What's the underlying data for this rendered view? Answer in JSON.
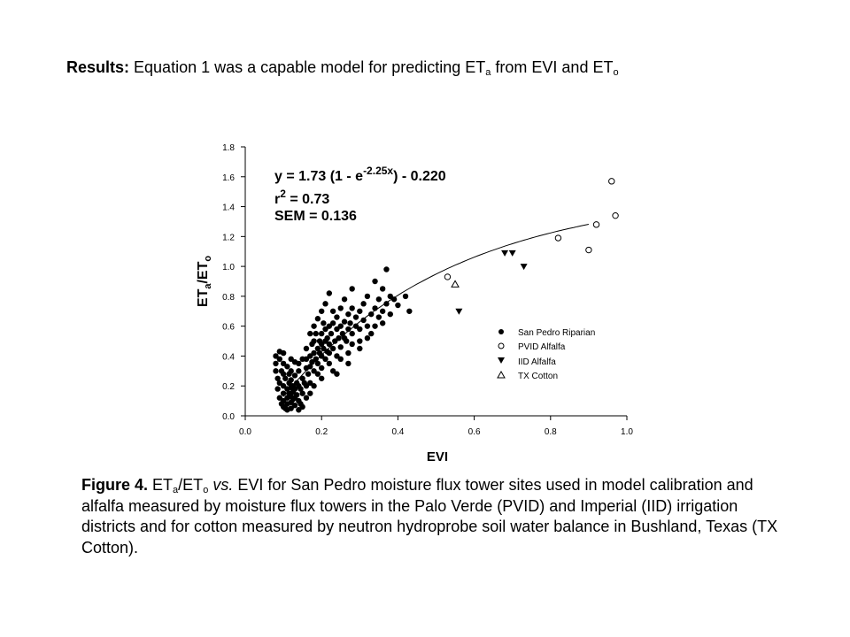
{
  "slide": {
    "title_lead": "Results:",
    "title_text": "Equation 1 was a capable model for predicting ET",
    "title_sub_a": "a",
    "title_mid": "from EVI and ET",
    "title_sub_o": "o"
  },
  "caption": {
    "lead": "Figure 4.",
    "et": "ET",
    "sub_a": "a",
    "slash": "/ET",
    "sub_o": "o",
    "vs": "vs.",
    "rest": "EVI for San Pedro moisture flux tower sites used in model calibration and alfalfa measured by moisture flux towers in the Palo Verde (PVID) and Imperial (IID) irrigation districts and for cotton measured by neutron hydroprobe soil water balance in Bushland, Texas (TX Cotton)."
  },
  "chart_data": {
    "type": "scatter",
    "xlabel": "EVI",
    "ylabel": "ETa/ETo",
    "ylabel_parts": {
      "base": "ET",
      "sub1": "a",
      "mid": "/ET",
      "sub2": "o"
    },
    "xlim": [
      0.0,
      1.0
    ],
    "ylim": [
      0.0,
      1.8
    ],
    "xticks": [
      "0.0",
      "0.2",
      "0.4",
      "0.6",
      "0.8",
      "1.0"
    ],
    "yticks": [
      "0.0",
      "0.2",
      "0.4",
      "0.6",
      "0.8",
      "1.0",
      "1.2",
      "1.4",
      "1.6",
      "1.8"
    ],
    "grid": false,
    "legend_position": "bottom-right",
    "equation": {
      "line1_pre": "y = 1.73 (1 - e",
      "line1_sup": "-2.25x",
      "line1_post": ") - 0.220",
      "line2_pre": "r",
      "line2_sup": "2",
      "line2_post": " = 0.73",
      "line3": "SEM = 0.136"
    },
    "fit": {
      "a": 1.73,
      "b": 2.25,
      "c": 0.22,
      "x_range": [
        0.1,
        0.9
      ]
    },
    "series": [
      {
        "name": "San Pedro Riparian",
        "marker": "filled-circle",
        "points": [
          [
            0.08,
            0.4
          ],
          [
            0.08,
            0.35
          ],
          [
            0.08,
            0.3
          ],
          [
            0.085,
            0.25
          ],
          [
            0.085,
            0.18
          ],
          [
            0.09,
            0.43
          ],
          [
            0.09,
            0.38
          ],
          [
            0.09,
            0.22
          ],
          [
            0.09,
            0.12
          ],
          [
            0.095,
            0.3
          ],
          [
            0.095,
            0.08
          ],
          [
            0.1,
            0.42
          ],
          [
            0.1,
            0.35
          ],
          [
            0.1,
            0.28
          ],
          [
            0.1,
            0.2
          ],
          [
            0.1,
            0.15
          ],
          [
            0.1,
            0.1
          ],
          [
            0.1,
            0.06
          ],
          [
            0.105,
            0.25
          ],
          [
            0.105,
            0.05
          ],
          [
            0.11,
            0.33
          ],
          [
            0.11,
            0.18
          ],
          [
            0.11,
            0.12
          ],
          [
            0.11,
            0.08
          ],
          [
            0.11,
            0.04
          ],
          [
            0.115,
            0.28
          ],
          [
            0.115,
            0.22
          ],
          [
            0.115,
            0.15
          ],
          [
            0.12,
            0.3
          ],
          [
            0.12,
            0.24
          ],
          [
            0.12,
            0.19
          ],
          [
            0.12,
            0.13
          ],
          [
            0.12,
            0.09
          ],
          [
            0.12,
            0.05
          ],
          [
            0.125,
            0.2
          ],
          [
            0.125,
            0.16
          ],
          [
            0.125,
            0.11
          ],
          [
            0.13,
            0.36
          ],
          [
            0.13,
            0.27
          ],
          [
            0.13,
            0.18
          ],
          [
            0.13,
            0.12
          ],
          [
            0.13,
            0.07
          ],
          [
            0.135,
            0.22
          ],
          [
            0.135,
            0.14
          ],
          [
            0.14,
            0.3
          ],
          [
            0.14,
            0.2
          ],
          [
            0.14,
            0.1
          ],
          [
            0.14,
            0.04
          ],
          [
            0.145,
            0.18
          ],
          [
            0.145,
            0.08
          ],
          [
            0.15,
            0.38
          ],
          [
            0.15,
            0.25
          ],
          [
            0.15,
            0.15
          ],
          [
            0.15,
            0.06
          ],
          [
            0.155,
            0.22
          ],
          [
            0.16,
            0.32
          ],
          [
            0.16,
            0.45
          ],
          [
            0.16,
            0.2
          ],
          [
            0.16,
            0.12
          ],
          [
            0.165,
            0.28
          ],
          [
            0.17,
            0.4
          ],
          [
            0.17,
            0.55
          ],
          [
            0.17,
            0.33
          ],
          [
            0.17,
            0.22
          ],
          [
            0.17,
            0.15
          ],
          [
            0.175,
            0.48
          ],
          [
            0.175,
            0.36
          ],
          [
            0.18,
            0.5
          ],
          [
            0.18,
            0.42
          ],
          [
            0.18,
            0.3
          ],
          [
            0.18,
            0.6
          ],
          [
            0.185,
            0.38
          ],
          [
            0.185,
            0.55
          ],
          [
            0.19,
            0.45
          ],
          [
            0.19,
            0.35
          ],
          [
            0.19,
            0.28
          ],
          [
            0.19,
            0.65
          ],
          [
            0.195,
            0.5
          ],
          [
            0.195,
            0.42
          ],
          [
            0.2,
            0.48
          ],
          [
            0.2,
            0.4
          ],
          [
            0.2,
            0.55
          ],
          [
            0.2,
            0.32
          ],
          [
            0.2,
            0.7
          ],
          [
            0.205,
            0.45
          ],
          [
            0.205,
            0.62
          ],
          [
            0.21,
            0.5
          ],
          [
            0.21,
            0.38
          ],
          [
            0.21,
            0.58
          ],
          [
            0.21,
            0.75
          ],
          [
            0.215,
            0.43
          ],
          [
            0.215,
            0.52
          ],
          [
            0.22,
            0.48
          ],
          [
            0.22,
            0.35
          ],
          [
            0.22,
            0.6
          ],
          [
            0.22,
            0.82
          ],
          [
            0.225,
            0.55
          ],
          [
            0.23,
            0.45
          ],
          [
            0.23,
            0.62
          ],
          [
            0.23,
            0.7
          ],
          [
            0.235,
            0.5
          ],
          [
            0.24,
            0.58
          ],
          [
            0.24,
            0.4
          ],
          [
            0.24,
            0.66
          ],
          [
            0.245,
            0.52
          ],
          [
            0.25,
            0.6
          ],
          [
            0.25,
            0.72
          ],
          [
            0.25,
            0.46
          ],
          [
            0.255,
            0.55
          ],
          [
            0.26,
            0.63
          ],
          [
            0.26,
            0.78
          ],
          [
            0.265,
            0.5
          ],
          [
            0.27,
            0.58
          ],
          [
            0.27,
            0.68
          ],
          [
            0.27,
            0.42
          ],
          [
            0.275,
            0.62
          ],
          [
            0.28,
            0.55
          ],
          [
            0.28,
            0.72
          ],
          [
            0.28,
            0.85
          ],
          [
            0.29,
            0.6
          ],
          [
            0.29,
            0.66
          ],
          [
            0.3,
            0.58
          ],
          [
            0.3,
            0.7
          ],
          [
            0.3,
            0.5
          ],
          [
            0.31,
            0.64
          ],
          [
            0.31,
            0.75
          ],
          [
            0.32,
            0.6
          ],
          [
            0.32,
            0.8
          ],
          [
            0.33,
            0.68
          ],
          [
            0.33,
            0.55
          ],
          [
            0.34,
            0.72
          ],
          [
            0.34,
            0.9
          ],
          [
            0.35,
            0.66
          ],
          [
            0.35,
            0.78
          ],
          [
            0.36,
            0.7
          ],
          [
            0.36,
            0.85
          ],
          [
            0.37,
            0.75
          ],
          [
            0.37,
            0.98
          ],
          [
            0.38,
            0.8
          ],
          [
            0.38,
            0.68
          ],
          [
            0.39,
            0.78
          ],
          [
            0.4,
            0.74
          ],
          [
            0.42,
            0.8
          ],
          [
            0.43,
            0.7
          ],
          [
            0.36,
            0.62
          ],
          [
            0.34,
            0.6
          ],
          [
            0.3,
            0.45
          ],
          [
            0.27,
            0.35
          ],
          [
            0.25,
            0.38
          ],
          [
            0.23,
            0.3
          ],
          [
            0.26,
            0.52
          ],
          [
            0.28,
            0.48
          ],
          [
            0.32,
            0.52
          ],
          [
            0.24,
            0.28
          ],
          [
            0.22,
            0.42
          ],
          [
            0.2,
            0.25
          ],
          [
            0.18,
            0.2
          ],
          [
            0.16,
            0.38
          ],
          [
            0.14,
            0.35
          ],
          [
            0.12,
            0.38
          ]
        ]
      },
      {
        "name": "PVID Alfalfa",
        "marker": "open-circle",
        "points": [
          [
            0.53,
            0.93
          ],
          [
            0.82,
            1.19
          ],
          [
            0.9,
            1.11
          ],
          [
            0.92,
            1.28
          ],
          [
            0.96,
            1.57
          ],
          [
            0.97,
            1.34
          ]
        ]
      },
      {
        "name": "IID Alfalfa",
        "marker": "filled-triangle-down",
        "points": [
          [
            0.56,
            0.7
          ],
          [
            0.68,
            1.09
          ],
          [
            0.7,
            1.09
          ],
          [
            0.73,
            1.0
          ]
        ]
      },
      {
        "name": "TX Cotton",
        "marker": "open-triangle-up",
        "points": [
          [
            0.55,
            0.88
          ]
        ]
      }
    ]
  }
}
